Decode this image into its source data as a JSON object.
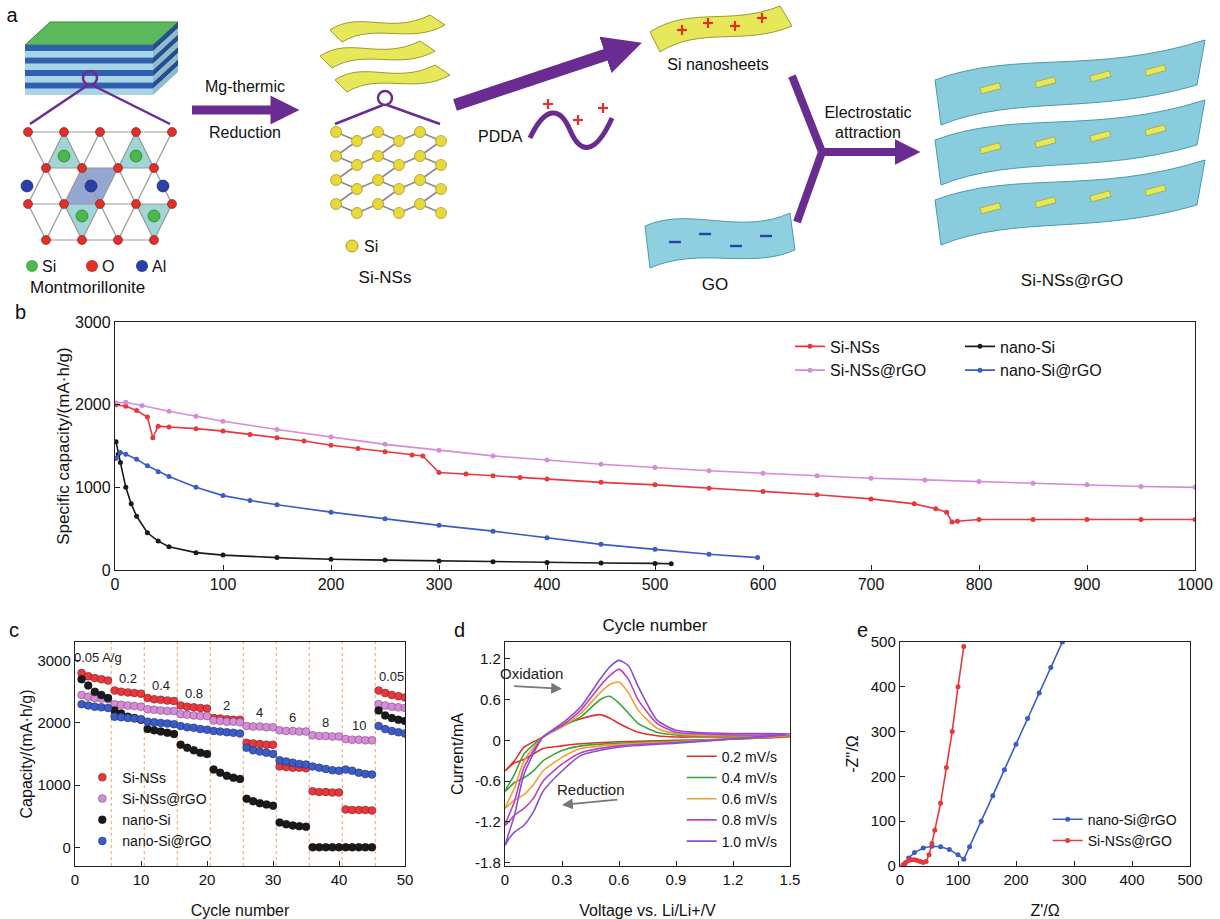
{
  "diagram": {
    "panel": "a",
    "montmorillonite": {
      "label": "Montmorillonite",
      "atoms": [
        {
          "text": "Si",
          "color": "#4cb84c"
        },
        {
          "text": "O",
          "color": "#e0302a"
        },
        {
          "text": "Al",
          "color": "#2a3fa8"
        }
      ]
    },
    "reduction_step": [
      "Mg-thermic",
      "Reduction"
    ],
    "si_ns": {
      "label": "Si-NSs",
      "atoms": [
        {
          "text": "Si",
          "color": "#e8d83a"
        }
      ]
    },
    "pdda": "PDDA",
    "si_nanosheets": "Si nanosheets",
    "go": "GO",
    "assembly_step": [
      "Electrostatic",
      "attraction"
    ],
    "product": "Si-NSs@rGO"
  },
  "chart_data": [
    {
      "panel": "b",
      "type": "line",
      "x_label": "Cycle number",
      "y_label": "Specific capacity/(mA·h/g)",
      "xlim": [
        0,
        1000
      ],
      "xticks": [
        0,
        100,
        200,
        300,
        400,
        500,
        600,
        700,
        800,
        900,
        1000
      ],
      "ylim": [
        0,
        3000
      ],
      "yticks": [
        0,
        1000,
        2000,
        3000
      ],
      "grid": false,
      "legend": "upper right",
      "marker": "circle",
      "series": [
        {
          "name": "Si-NSs",
          "color": "#e8383d",
          "x": [
            1,
            10,
            20,
            30,
            35,
            40,
            50,
            75,
            100,
            125,
            150,
            175,
            200,
            225,
            250,
            275,
            285,
            300,
            325,
            350,
            375,
            400,
            450,
            500,
            550,
            600,
            650,
            700,
            740,
            760,
            770,
            775,
            780,
            800,
            850,
            900,
            950,
            1000
          ],
          "values": [
            2000,
            1980,
            1930,
            1850,
            1600,
            1740,
            1730,
            1710,
            1680,
            1640,
            1600,
            1560,
            1510,
            1470,
            1430,
            1390,
            1380,
            1180,
            1160,
            1140,
            1120,
            1100,
            1060,
            1030,
            990,
            950,
            910,
            860,
            800,
            740,
            700,
            580,
            590,
            610,
            610,
            610,
            610,
            610
          ]
        },
        {
          "name": "Si-NSs@rGO",
          "color": "#d68bd8",
          "x": [
            1,
            10,
            25,
            50,
            75,
            100,
            150,
            200,
            250,
            300,
            350,
            400,
            450,
            500,
            550,
            600,
            650,
            700,
            750,
            800,
            850,
            900,
            950,
            1000
          ],
          "values": [
            2020,
            2030,
            1990,
            1920,
            1860,
            1800,
            1700,
            1610,
            1520,
            1450,
            1380,
            1330,
            1280,
            1240,
            1200,
            1170,
            1140,
            1110,
            1090,
            1070,
            1050,
            1030,
            1010,
            1000
          ]
        },
        {
          "name": "nano-Si",
          "color": "#1a1a1a",
          "x": [
            1,
            3,
            5,
            10,
            15,
            20,
            30,
            40,
            50,
            75,
            100,
            150,
            200,
            250,
            300,
            350,
            400,
            450,
            500,
            515
          ],
          "values": [
            1550,
            1400,
            1300,
            1000,
            800,
            650,
            450,
            350,
            280,
            210,
            180,
            150,
            130,
            120,
            110,
            100,
            90,
            85,
            80,
            75
          ]
        },
        {
          "name": "nano-Si@rGO",
          "color": "#3b5cc6",
          "x": [
            1,
            5,
            10,
            20,
            30,
            40,
            50,
            75,
            100,
            125,
            150,
            200,
            250,
            300,
            350,
            400,
            450,
            500,
            550,
            595
          ],
          "values": [
            1350,
            1420,
            1400,
            1340,
            1260,
            1190,
            1130,
            1000,
            900,
            840,
            790,
            700,
            620,
            540,
            470,
            390,
            310,
            250,
            190,
            150
          ]
        }
      ]
    },
    {
      "panel": "c",
      "type": "scatter",
      "x_label": "Cycle number",
      "y_label": "Capacity/(mA·h/g)",
      "xlim": [
        0,
        50
      ],
      "xticks": [
        0,
        10,
        20,
        30,
        40,
        50
      ],
      "ylim": [
        -300,
        3300
      ],
      "yticks": [
        0,
        1000,
        2000,
        3000
      ],
      "grid": false,
      "legend": "lower left",
      "marker": "circle",
      "x": [
        1,
        2,
        3,
        4,
        5,
        6,
        7,
        8,
        9,
        10,
        11,
        12,
        13,
        14,
        15,
        16,
        17,
        18,
        19,
        20,
        21,
        22,
        23,
        24,
        25,
        26,
        27,
        28,
        29,
        30,
        31,
        32,
        33,
        34,
        35,
        36,
        37,
        38,
        39,
        40,
        41,
        42,
        43,
        44,
        45,
        46,
        47,
        48,
        49,
        50
      ],
      "series": [
        {
          "name": "Si-NSs",
          "color": "#e8383d",
          "values": [
            2800,
            2750,
            2720,
            2700,
            2680,
            2520,
            2500,
            2490,
            2480,
            2470,
            2400,
            2380,
            2370,
            2360,
            2350,
            2280,
            2260,
            2250,
            2240,
            2230,
            2080,
            2070,
            2060,
            2050,
            2050,
            1680,
            1670,
            1660,
            1650,
            1650,
            1300,
            1290,
            1280,
            1280,
            1270,
            900,
            890,
            890,
            880,
            880,
            610,
            600,
            600,
            600,
            590,
            2520,
            2480,
            2450,
            2430,
            2410
          ]
        },
        {
          "name": "Si-NSs@rGO",
          "color": "#d68bd8",
          "values": [
            2450,
            2420,
            2400,
            2390,
            2380,
            2300,
            2290,
            2280,
            2270,
            2260,
            2220,
            2210,
            2200,
            2190,
            2190,
            2140,
            2130,
            2120,
            2110,
            2110,
            2040,
            2030,
            2020,
            2020,
            2010,
            1950,
            1940,
            1940,
            1930,
            1930,
            1880,
            1870,
            1870,
            1860,
            1860,
            1800,
            1790,
            1790,
            1780,
            1780,
            1740,
            1730,
            1730,
            1720,
            1720,
            2300,
            2280,
            2260,
            2250,
            2240
          ]
        },
        {
          "name": "nano-Si",
          "color": "#1a1a1a",
          "values": [
            2700,
            2600,
            2500,
            2450,
            2400,
            2200,
            2150,
            2100,
            2080,
            2050,
            1900,
            1880,
            1860,
            1840,
            1820,
            1650,
            1600,
            1560,
            1520,
            1500,
            1250,
            1200,
            1150,
            1120,
            1100,
            780,
            740,
            710,
            690,
            670,
            400,
            370,
            350,
            340,
            330,
            0,
            0,
            0,
            0,
            0,
            0,
            0,
            0,
            0,
            0,
            2200,
            2120,
            2080,
            2050,
            2030
          ]
        },
        {
          "name": "nano-Si@rGO",
          "color": "#3b5cc6",
          "values": [
            2300,
            2280,
            2260,
            2250,
            2240,
            2100,
            2090,
            2080,
            2070,
            2060,
            2020,
            2010,
            2000,
            1990,
            1980,
            1950,
            1930,
            1920,
            1900,
            1890,
            1870,
            1860,
            1850,
            1840,
            1830,
            1600,
            1560,
            1540,
            1520,
            1500,
            1400,
            1380,
            1360,
            1340,
            1330,
            1300,
            1280,
            1260,
            1240,
            1230,
            1250,
            1230,
            1200,
            1180,
            1170,
            1950,
            1900,
            1870,
            1850,
            1830
          ]
        }
      ],
      "annotations": [
        {
          "text": "0.05 A/g",
          "x": 3.5,
          "y": 3050
        },
        {
          "text": "0.2",
          "x": 8,
          "y": 2720
        },
        {
          "text": "0.4",
          "x": 13,
          "y": 2600
        },
        {
          "text": "0.8",
          "x": 18,
          "y": 2480
        },
        {
          "text": "2",
          "x": 23,
          "y": 2280
        },
        {
          "text": "4",
          "x": 28,
          "y": 2170
        },
        {
          "text": "6",
          "x": 33,
          "y": 2090
        },
        {
          "text": "8",
          "x": 38,
          "y": 2010
        },
        {
          "text": "10",
          "x": 43,
          "y": 1960
        },
        {
          "text": "0.05",
          "x": 48,
          "y": 2740
        }
      ],
      "boundaries": [
        5.5,
        10.5,
        15.5,
        20.5,
        25.5,
        30.5,
        35.5,
        40.5,
        45.5
      ]
    },
    {
      "panel": "d",
      "type": "line",
      "x_label": "Voltage vs. Li/Li+/V",
      "y_label": "Current/mA",
      "xlim": [
        0,
        1.5
      ],
      "xticks": [
        0,
        0.3,
        0.6,
        0.9,
        1.2,
        1.5
      ],
      "ylim": [
        -1.85,
        1.45
      ],
      "yticks": [
        -1.8,
        -1.2,
        -0.6,
        0,
        0.6,
        1.2
      ],
      "grid": false,
      "legend": "lower right",
      "x": [
        0,
        0.05,
        0.1,
        0.2,
        0.3,
        0.4,
        0.5,
        0.55,
        0.6,
        0.65,
        0.7,
        0.8,
        0.9,
        1.0,
        1.2,
        1.5,
        1.2,
        0.9,
        0.6,
        0.4,
        0.3,
        0.2,
        0.15,
        0.1,
        0.05,
        0.02,
        0
      ],
      "series": [
        {
          "name": "0.2 mV/s",
          "color": "#e0302a",
          "values": [
            -0.45,
            -0.3,
            -0.1,
            0.05,
            0.22,
            0.32,
            0.38,
            0.33,
            0.25,
            0.18,
            0.12,
            0.07,
            0.05,
            0.05,
            0.05,
            0.05,
            0.02,
            0.0,
            -0.02,
            -0.05,
            -0.08,
            -0.12,
            -0.2,
            -0.28,
            -0.33,
            -0.4,
            -0.45
          ]
        },
        {
          "name": "0.4 mV/s",
          "color": "#3aa53a",
          "values": [
            -0.75,
            -0.5,
            -0.2,
            0.05,
            0.2,
            0.35,
            0.6,
            0.65,
            0.55,
            0.4,
            0.25,
            0.12,
            0.08,
            0.07,
            0.06,
            0.06,
            0.02,
            -0.01,
            -0.04,
            -0.08,
            -0.15,
            -0.3,
            -0.45,
            -0.55,
            -0.62,
            -0.7,
            -0.75
          ]
        },
        {
          "name": "0.6 mV/s",
          "color": "#f0a030",
          "values": [
            -1.0,
            -0.7,
            -0.3,
            0.05,
            0.2,
            0.4,
            0.7,
            0.82,
            0.86,
            0.7,
            0.45,
            0.18,
            0.1,
            0.08,
            0.07,
            0.07,
            0.02,
            -0.02,
            -0.06,
            -0.12,
            -0.25,
            -0.45,
            -0.65,
            -0.8,
            -0.88,
            -0.95,
            -1.0
          ]
        },
        {
          "name": "0.8 mV/s",
          "color": "#c040c0",
          "values": [
            -1.25,
            -0.9,
            -0.4,
            0.05,
            0.22,
            0.45,
            0.8,
            0.95,
            1.05,
            0.9,
            0.6,
            0.25,
            0.12,
            0.1,
            0.08,
            0.08,
            0.02,
            -0.03,
            -0.08,
            -0.18,
            -0.35,
            -0.6,
            -0.85,
            -1.0,
            -1.1,
            -1.2,
            -1.25
          ]
        },
        {
          "name": "1.0 mV/s",
          "color": "#8a4fd0",
          "values": [
            -1.55,
            -1.1,
            -0.5,
            0.05,
            0.25,
            0.5,
            0.9,
            1.08,
            1.18,
            1.1,
            0.8,
            0.3,
            0.15,
            0.12,
            0.1,
            0.1,
            0.02,
            -0.04,
            -0.1,
            -0.22,
            -0.45,
            -0.75,
            -1.05,
            -1.25,
            -1.35,
            -1.45,
            -1.55
          ]
        }
      ],
      "annotations": [
        {
          "text": "Oxidation",
          "x": 0.14,
          "y": 0.98,
          "arrow_from": [
            0.04,
            0.8
          ],
          "arrow_to": [
            0.3,
            0.76
          ]
        },
        {
          "text": "Reduction",
          "x": 0.45,
          "y": -0.72,
          "arrow_from": [
            0.6,
            -0.87
          ],
          "arrow_to": [
            0.3,
            -0.95
          ]
        }
      ]
    },
    {
      "panel": "e",
      "type": "line",
      "x_label": "Z'/Ω",
      "y_label": "-Z''/Ω",
      "xlim": [
        0,
        500
      ],
      "xticks": [
        0,
        100,
        200,
        300,
        400,
        500
      ],
      "ylim": [
        0,
        500
      ],
      "yticks": [
        0,
        100,
        200,
        300,
        400,
        500
      ],
      "grid": false,
      "legend": "lower right",
      "marker": "circle",
      "series": [
        {
          "name": "nano-Si@rGO",
          "color": "#3b5cc6",
          "x": [
            8,
            15,
            25,
            40,
            55,
            70,
            85,
            100,
            110,
            120,
            140,
            160,
            180,
            200,
            220,
            240,
            260,
            280
          ],
          "values": [
            5,
            18,
            30,
            40,
            44,
            43,
            37,
            25,
            15,
            43,
            100,
            157,
            215,
            272,
            329,
            386,
            443,
            500
          ]
        },
        {
          "name": "Si-NSs@rGO",
          "color": "#e8383d",
          "x": [
            5,
            10,
            15,
            20,
            25,
            30,
            35,
            40,
            45,
            50,
            55,
            60,
            70,
            80,
            90,
            100,
            110
          ],
          "values": [
            2,
            8,
            12,
            14,
            14,
            12,
            10,
            8,
            10,
            25,
            50,
            80,
            140,
            220,
            300,
            400,
            490
          ]
        }
      ]
    }
  ]
}
